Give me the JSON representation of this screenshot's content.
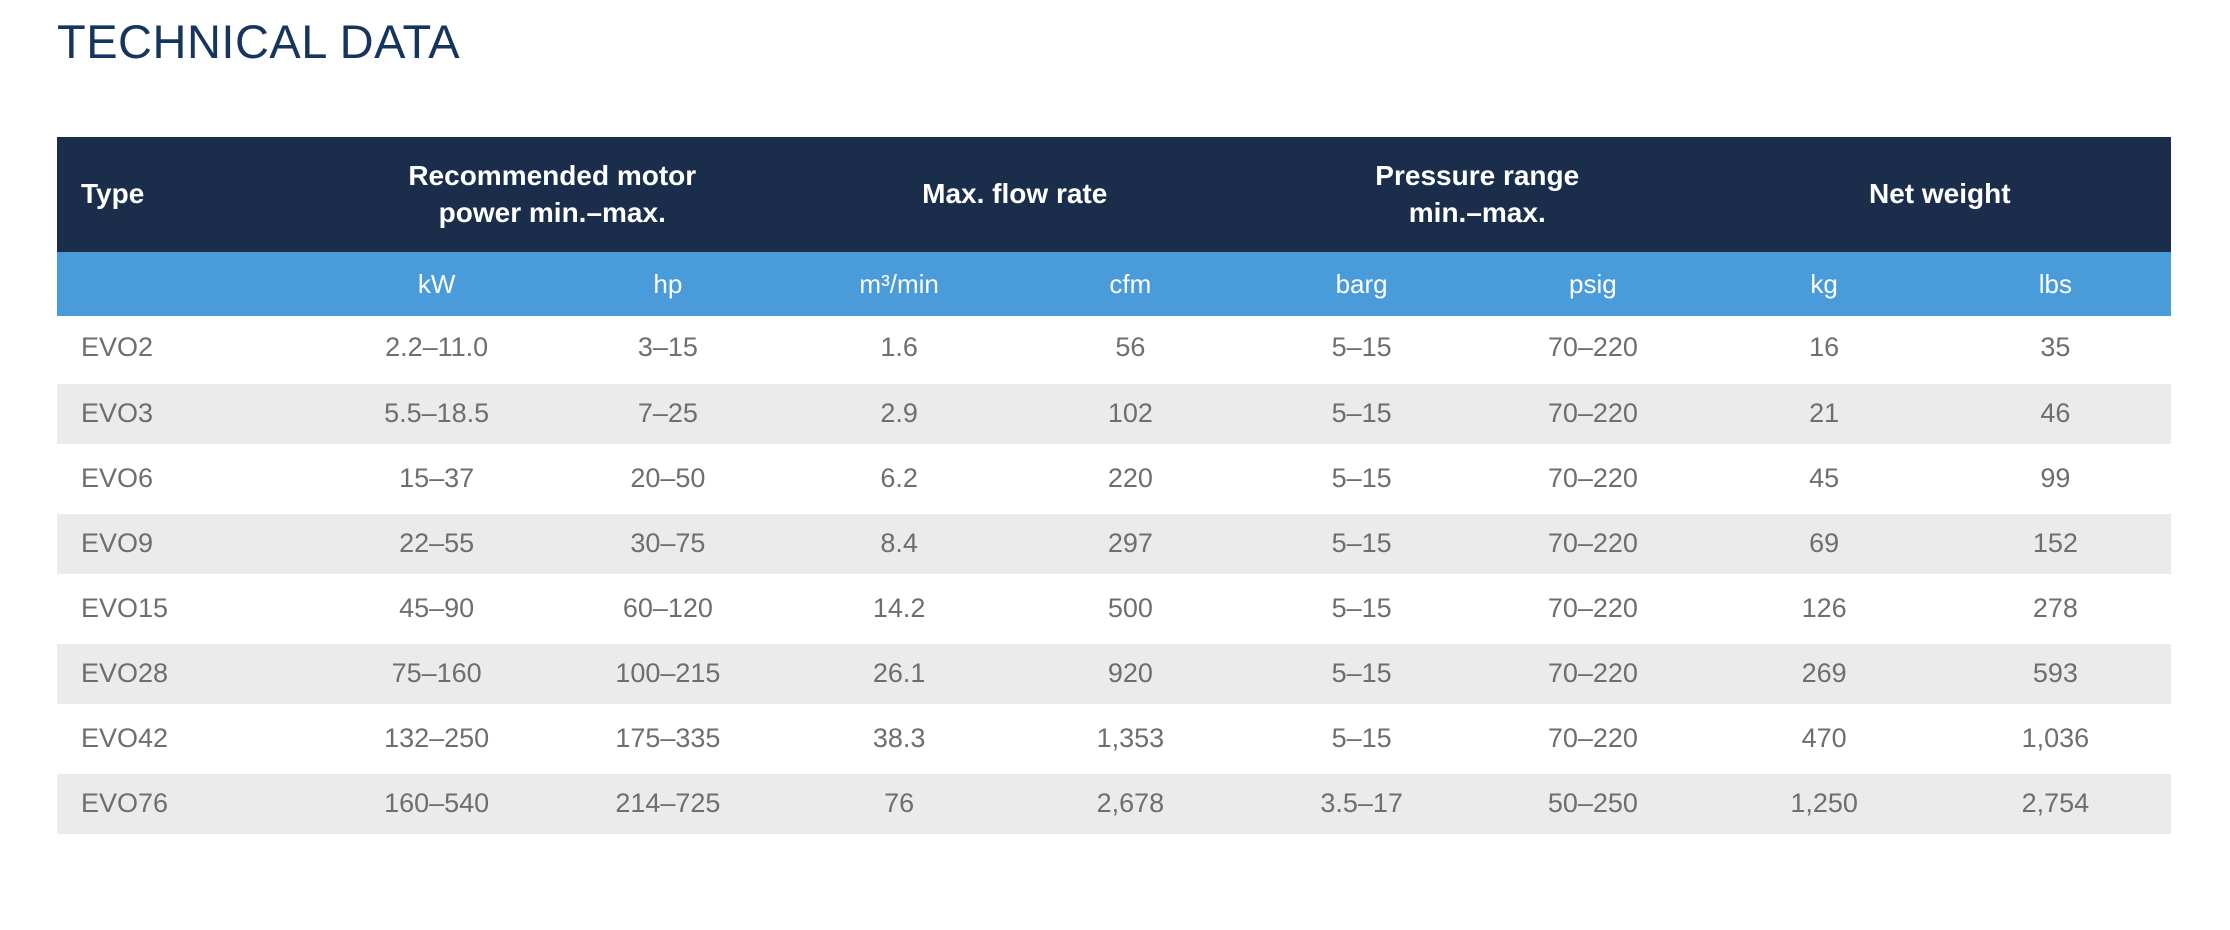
{
  "page": {
    "title": "TECHNICAL DATA"
  },
  "colors": {
    "title_text": "#16355e",
    "header_bg": "#1a2e4c",
    "header_text": "#ffffff",
    "unit_row_bg": "#4a9bda",
    "unit_row_text": "#ffffff",
    "row_alt_bg": "#ebebeb",
    "row_bg": "#ffffff",
    "cell_text": "#6e6e6e"
  },
  "table": {
    "type_header": "Type",
    "groups": [
      "Recommended motor\npower min.–max.",
      "Max. flow rate",
      "Pressure range\nmin.–max.",
      "Net weight"
    ],
    "units": [
      "kW",
      "hp",
      "m³/min",
      "cfm",
      "barg",
      "psig",
      "kg",
      "lbs"
    ],
    "rows": [
      [
        "EVO2",
        "2.2–11.0",
        "3–15",
        "1.6",
        "56",
        "5–15",
        "70–220",
        "16",
        "35"
      ],
      [
        "EVO3",
        "5.5–18.5",
        "7–25",
        "2.9",
        "102",
        "5–15",
        "70–220",
        "21",
        "46"
      ],
      [
        "EVO6",
        "15–37",
        "20–50",
        "6.2",
        "220",
        "5–15",
        "70–220",
        "45",
        "99"
      ],
      [
        "EVO9",
        "22–55",
        "30–75",
        "8.4",
        "297",
        "5–15",
        "70–220",
        "69",
        "152"
      ],
      [
        "EVO15",
        "45–90",
        "60–120",
        "14.2",
        "500",
        "5–15",
        "70–220",
        "126",
        "278"
      ],
      [
        "EVO28",
        "75–160",
        "100–215",
        "26.1",
        "920",
        "5–15",
        "70–220",
        "269",
        "593"
      ],
      [
        "EVO42",
        "132–250",
        "175–335",
        "38.3",
        "1,353",
        "5–15",
        "70–220",
        "470",
        "1,036"
      ],
      [
        "EVO76",
        "160–540",
        "214–725",
        "76",
        "2,678",
        "3.5–17",
        "50–250",
        "1,250",
        "2,754"
      ]
    ]
  }
}
